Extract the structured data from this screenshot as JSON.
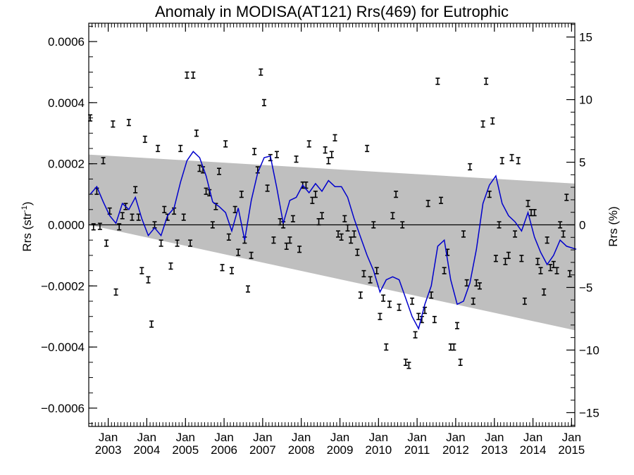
{
  "chart_data": {
    "type": "line",
    "title": "Anomaly in MODISA(AT121) Rrs(469) for Eutrophic",
    "ylabel_left": "Rrs (str",
    "ylabel_left_sup": "-1",
    "ylabel_left_close": ")",
    "ylabel_right": "Rrs (%)",
    "x_range": [
      "2002-07-01",
      "2015-02-01"
    ],
    "ylim_left": [
      -0.00066,
      0.00066
    ],
    "ylim_right": [
      -16.1,
      16.1
    ],
    "grid": false,
    "legend": "none",
    "colors": {
      "line": "#0000cc",
      "band": "#bfbfbf",
      "points": "#000000",
      "zero_line": "#000000"
    },
    "y_ticks_left": [
      {
        "value": 0.0006,
        "label": "0.0006"
      },
      {
        "value": 0.0004,
        "label": "0.0004"
      },
      {
        "value": 0.0002,
        "label": "0.0002"
      },
      {
        "value": 0.0,
        "label": "0.0000"
      },
      {
        "value": -0.0002,
        "label": "−0.0002"
      },
      {
        "value": -0.0004,
        "label": "−0.0004"
      },
      {
        "value": -0.0006,
        "label": "−0.0006"
      }
    ],
    "y_ticks_right": [
      {
        "value": 15,
        "label": "15"
      },
      {
        "value": 10,
        "label": "10"
      },
      {
        "value": 5,
        "label": "5"
      },
      {
        "value": 0,
        "label": "0"
      },
      {
        "value": -5,
        "label": "−5"
      },
      {
        "value": -10,
        "label": "−10"
      },
      {
        "value": -15,
        "label": "−15"
      }
    ],
    "x_ticks": [
      {
        "date": "2003-01-01",
        "month": "Jan",
        "year": "2003"
      },
      {
        "date": "2004-01-01",
        "month": "Jan",
        "year": "2004"
      },
      {
        "date": "2005-01-01",
        "month": "Jan",
        "year": "2005"
      },
      {
        "date": "2006-01-01",
        "month": "Jan",
        "year": "2006"
      },
      {
        "date": "2007-01-01",
        "month": "Jan",
        "year": "2007"
      },
      {
        "date": "2008-01-01",
        "month": "Jan",
        "year": "2008"
      },
      {
        "date": "2009-01-01",
        "month": "Jan",
        "year": "2009"
      },
      {
        "date": "2010-01-01",
        "month": "Jan",
        "year": "2010"
      },
      {
        "date": "2011-01-01",
        "month": "Jan",
        "year": "2011"
      },
      {
        "date": "2012-01-01",
        "month": "Jan",
        "year": "2012"
      },
      {
        "date": "2013-01-01",
        "month": "Jan",
        "year": "2013"
      },
      {
        "date": "2014-01-01",
        "month": "Jan",
        "year": "2014"
      },
      {
        "date": "2015-01-01",
        "month": "Jan",
        "year": "2015"
      }
    ],
    "band": {
      "upper": [
        [
          "2002-07-01",
          0.00023
        ],
        [
          "2015-02-01",
          0.000135
        ]
      ],
      "lower": [
        [
          "2002-07-01",
          0.0
        ],
        [
          "2015-02-01",
          -0.000345
        ]
      ]
    },
    "zero_line": 0.0,
    "error_halfwidth": 1e-05,
    "points": [
      [
        "2002-07",
        0.00035
      ],
      [
        "2002-08",
        -6.5e-06
      ],
      [
        "2002-09",
        0.00011
      ],
      [
        "2002-10",
        -5e-06
      ],
      [
        "2002-11",
        0.00021
      ],
      [
        "2002-12",
        -6e-05
      ],
      [
        "2003-01",
        4.5e-05
      ],
      [
        "2003-02",
        0.00033
      ],
      [
        "2003-03",
        -0.00022
      ],
      [
        "2003-04",
        -6.5e-06
      ],
      [
        "2003-05",
        3e-05
      ],
      [
        "2003-06",
        6e-05
      ],
      [
        "2003-07",
        0.000335
      ],
      [
        "2003-08",
        2.5e-05
      ],
      [
        "2003-09",
        0.000115
      ],
      [
        "2003-10",
        2.5e-05
      ],
      [
        "2003-11",
        -0.00015
      ],
      [
        "2003-12",
        0.00028
      ],
      [
        "2004-01",
        -0.00018
      ],
      [
        "2004-02",
        -0.000325
      ],
      [
        "2004-03",
        0.0
      ],
      [
        "2004-04",
        0.00025
      ],
      [
        "2004-05",
        -6e-05
      ],
      [
        "2004-06",
        5e-05
      ],
      [
        "2004-07",
        2.5e-05
      ],
      [
        "2004-08",
        -0.000135
      ],
      [
        "2004-09",
        4.5e-05
      ],
      [
        "2004-10",
        -6e-05
      ],
      [
        "2004-11",
        0.00025
      ],
      [
        "2004-12",
        2.5e-05
      ],
      [
        "2005-01",
        0.00049
      ],
      [
        "2005-02",
        -6e-05
      ],
      [
        "2005-03",
        0.00049
      ],
      [
        "2005-04",
        0.0003
      ],
      [
        "2005-05",
        0.000185
      ],
      [
        "2005-06",
        0.00018
      ],
      [
        "2005-07",
        0.00011
      ],
      [
        "2005-08",
        0.000105
      ],
      [
        "2005-09",
        0.0
      ],
      [
        "2005-10",
        6e-05
      ],
      [
        "2005-11",
        0.000175
      ],
      [
        "2005-12",
        -0.00014
      ],
      [
        "2006-01",
        0.000265
      ],
      [
        "2006-02",
        -4e-05
      ],
      [
        "2006-03",
        -0.00015
      ],
      [
        "2006-04",
        5e-05
      ],
      [
        "2006-05",
        -9e-05
      ],
      [
        "2006-06",
        0.0001
      ],
      [
        "2006-07",
        -5e-05
      ],
      [
        "2006-08",
        -0.00021
      ],
      [
        "2006-09",
        -0.0001
      ],
      [
        "2006-10",
        0.00024
      ],
      [
        "2006-11",
        0.00018
      ],
      [
        "2006-12",
        0.0005
      ],
      [
        "2007-01",
        0.0004
      ],
      [
        "2007-02",
        0.00012
      ],
      [
        "2007-03",
        0.00022
      ],
      [
        "2007-04",
        -5e-05
      ],
      [
        "2007-05",
        0.00023
      ],
      [
        "2007-06",
        1e-05
      ],
      [
        "2007-07",
        0.0
      ],
      [
        "2007-08",
        -7e-05
      ],
      [
        "2007-09",
        -5e-05
      ],
      [
        "2007-10",
        2e-05
      ],
      [
        "2007-11",
        0.000215
      ],
      [
        "2007-12",
        -8e-05
      ],
      [
        "2008-01",
        0.00013
      ],
      [
        "2008-02",
        0.00013
      ],
      [
        "2008-03",
        0.000265
      ],
      [
        "2008-04",
        8e-05
      ],
      [
        "2008-05",
        0.0001
      ],
      [
        "2008-06",
        1e-05
      ],
      [
        "2008-07",
        3e-05
      ],
      [
        "2008-08",
        0.000245
      ],
      [
        "2008-09",
        0.00021
      ],
      [
        "2008-10",
        0.00023
      ],
      [
        "2008-11",
        0.000285
      ],
      [
        "2008-12",
        -3e-05
      ],
      [
        "2009-01",
        -4e-05
      ],
      [
        "2009-02",
        2e-05
      ],
      [
        "2009-03",
        -1e-05
      ],
      [
        "2009-04",
        -5e-05
      ],
      [
        "2009-05",
        -3e-05
      ],
      [
        "2009-06",
        -9e-05
      ],
      [
        "2009-07",
        -0.00023
      ],
      [
        "2009-08",
        -0.00016
      ],
      [
        "2009-09",
        0.00025
      ],
      [
        "2009-10",
        -0.00018
      ],
      [
        "2009-11",
        0.0
      ],
      [
        "2009-12",
        -0.00015
      ],
      [
        "2010-01",
        -0.0003
      ],
      [
        "2010-02",
        -0.00024
      ],
      [
        "2010-03",
        -0.0004
      ],
      [
        "2010-04",
        -0.00026
      ],
      [
        "2010-05",
        3e-05
      ],
      [
        "2010-06",
        0.0001
      ],
      [
        "2010-07",
        -0.00027
      ],
      [
        "2010-08",
        0.0
      ],
      [
        "2010-09",
        -0.00045
      ],
      [
        "2010-10",
        -0.00046
      ],
      [
        "2010-11",
        -0.00025
      ],
      [
        "2010-12",
        -0.00036
      ],
      [
        "2011-01",
        -0.0003
      ],
      [
        "2011-02",
        -0.00031
      ],
      [
        "2011-03",
        -0.00028
      ],
      [
        "2011-04",
        7e-05
      ],
      [
        "2011-05",
        -0.00023
      ],
      [
        "2011-06",
        -0.00031
      ],
      [
        "2011-07",
        0.00047
      ],
      [
        "2011-08",
        8e-05
      ],
      [
        "2011-09",
        -0.00015
      ],
      [
        "2011-10",
        -9e-05
      ],
      [
        "2011-11",
        -0.0004
      ],
      [
        "2011-12",
        -0.0004
      ],
      [
        "2012-01",
        -0.00033
      ],
      [
        "2012-02",
        -0.00045
      ],
      [
        "2012-03",
        -3e-05
      ],
      [
        "2012-04",
        -0.00019
      ],
      [
        "2012-05",
        0.00019
      ],
      [
        "2012-06",
        -0.00025
      ],
      [
        "2012-07",
        -0.00019
      ],
      [
        "2012-08",
        -0.0002
      ],
      [
        "2012-09",
        0.00033
      ],
      [
        "2012-10",
        0.00047
      ],
      [
        "2012-11",
        0.0001
      ],
      [
        "2012-12",
        0.00034
      ],
      [
        "2013-01",
        -0.00011
      ],
      [
        "2013-02",
        0.0
      ],
      [
        "2013-03",
        0.00021
      ],
      [
        "2013-04",
        -0.00012
      ],
      [
        "2013-05",
        -0.0001
      ],
      [
        "2013-06",
        0.00022
      ],
      [
        "2013-07",
        -3e-05
      ],
      [
        "2013-08",
        0.00021
      ],
      [
        "2013-09",
        -0.00011
      ],
      [
        "2013-10",
        -0.00025
      ],
      [
        "2013-11",
        7e-05
      ],
      [
        "2013-12",
        4e-05
      ],
      [
        "2014-01",
        4e-05
      ],
      [
        "2014-02",
        -0.00012
      ],
      [
        "2014-03",
        -0.00015
      ],
      [
        "2014-04",
        -0.00022
      ],
      [
        "2014-05",
        -5e-05
      ],
      [
        "2014-06",
        -0.00014
      ],
      [
        "2014-07",
        -0.00013
      ],
      [
        "2014-08",
        -0.00015
      ],
      [
        "2014-09",
        -0.0
      ],
      [
        "2014-10",
        -3e-05
      ],
      [
        "2014-11",
        9e-05
      ],
      [
        "2014-12",
        -0.00016
      ]
    ],
    "smoothed": [
      [
        "2002-07",
        0.0001
      ],
      [
        "2002-09",
        0.000125
      ],
      [
        "2002-11",
        7.5e-05
      ],
      [
        "2003-01",
        3e-05
      ],
      [
        "2003-03",
        5e-06
      ],
      [
        "2003-05",
        7e-05
      ],
      [
        "2003-07",
        5e-05
      ],
      [
        "2003-09",
        9e-05
      ],
      [
        "2003-11",
        2e-05
      ],
      [
        "2004-01",
        -3.5e-05
      ],
      [
        "2004-03",
        -1e-05
      ],
      [
        "2004-05",
        -3.5e-05
      ],
      [
        "2004-07",
        3e-05
      ],
      [
        "2004-09",
        5.5e-05
      ],
      [
        "2004-11",
        0.00014
      ],
      [
        "2005-01",
        0.00021
      ],
      [
        "2005-03",
        0.00024
      ],
      [
        "2005-05",
        0.00022
      ],
      [
        "2005-07",
        0.00016
      ],
      [
        "2005-09",
        7.5e-05
      ],
      [
        "2005-11",
        6e-05
      ],
      [
        "2006-01",
        4e-05
      ],
      [
        "2006-03",
        -2e-05
      ],
      [
        "2006-05",
        5.5e-05
      ],
      [
        "2006-07",
        -5e-05
      ],
      [
        "2006-09",
        8e-05
      ],
      [
        "2006-11",
        0.00017
      ],
      [
        "2007-01",
        0.00022
      ],
      [
        "2007-03",
        0.000225
      ],
      [
        "2007-05",
        0.00012
      ],
      [
        "2007-07",
        5e-06
      ],
      [
        "2007-09",
        8e-05
      ],
      [
        "2007-11",
        9e-05
      ],
      [
        "2008-01",
        0.00013
      ],
      [
        "2008-03",
        0.000105
      ],
      [
        "2008-05",
        0.000135
      ],
      [
        "2008-07",
        0.00011
      ],
      [
        "2008-09",
        0.000145
      ],
      [
        "2008-11",
        0.000125
      ],
      [
        "2009-01",
        0.000125
      ],
      [
        "2009-03",
        9e-05
      ],
      [
        "2009-05",
        2e-05
      ],
      [
        "2009-07",
        -4e-05
      ],
      [
        "2009-09",
        -0.0001
      ],
      [
        "2009-11",
        -0.00015
      ],
      [
        "2010-01",
        -0.00022
      ],
      [
        "2010-03",
        -0.00018
      ],
      [
        "2010-05",
        -0.00017
      ],
      [
        "2010-07",
        -0.00018
      ],
      [
        "2010-09",
        -0.00024
      ],
      [
        "2010-11",
        -0.0003
      ],
      [
        "2011-01",
        -0.00034
      ],
      [
        "2011-03",
        -0.00026
      ],
      [
        "2011-05",
        -0.0002
      ],
      [
        "2011-07",
        -7e-05
      ],
      [
        "2011-09",
        -5e-05
      ],
      [
        "2011-11",
        -0.00018
      ],
      [
        "2012-01",
        -0.00026
      ],
      [
        "2012-03",
        -0.00025
      ],
      [
        "2012-05",
        -0.00019
      ],
      [
        "2012-07",
        -8e-05
      ],
      [
        "2012-09",
        7e-05
      ],
      [
        "2012-11",
        0.00013
      ],
      [
        "2013-01",
        0.00016
      ],
      [
        "2013-03",
        7e-05
      ],
      [
        "2013-05",
        3e-05
      ],
      [
        "2013-07",
        1e-05
      ],
      [
        "2013-09",
        -2e-05
      ],
      [
        "2013-11",
        4e-05
      ],
      [
        "2014-01",
        -4e-05
      ],
      [
        "2014-03",
        -9e-05
      ],
      [
        "2014-05",
        -0.00013
      ],
      [
        "2014-07",
        -0.0001
      ],
      [
        "2014-09",
        -5e-05
      ],
      [
        "2014-11",
        -7e-05
      ],
      [
        "2015-02",
        -8e-05
      ]
    ]
  }
}
